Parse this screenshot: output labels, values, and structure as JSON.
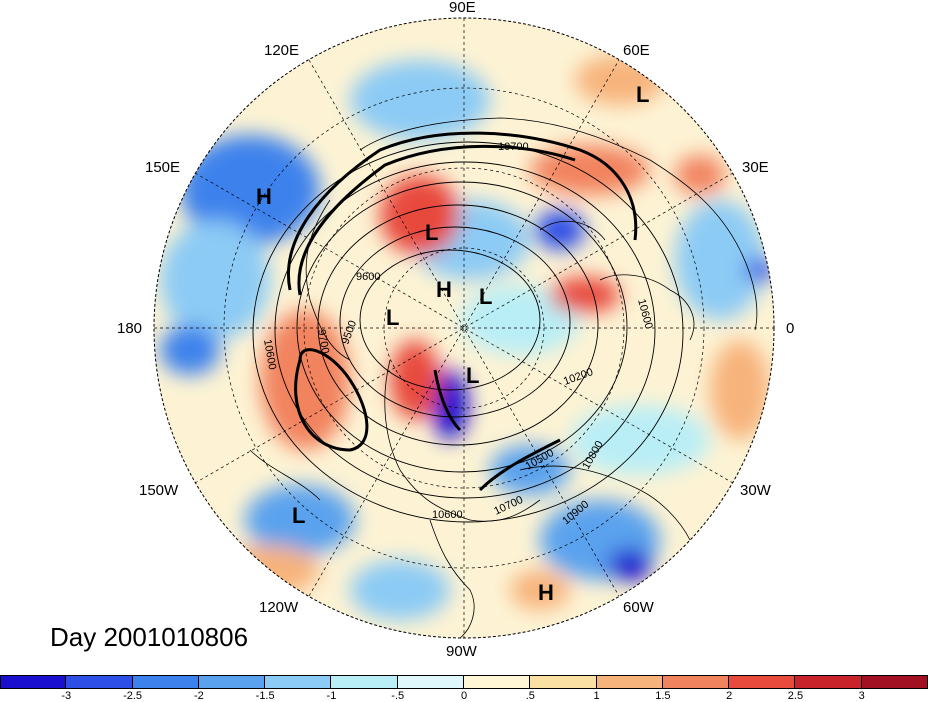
{
  "title": "Day 2001010806",
  "longitude_labels": [
    {
      "id": "90E",
      "text": "90E"
    },
    {
      "id": "60E",
      "text": "60E"
    },
    {
      "id": "120E",
      "text": "120E"
    },
    {
      "id": "150E",
      "text": "150E"
    },
    {
      "id": "30E",
      "text": "30E"
    },
    {
      "id": "180",
      "text": "180"
    },
    {
      "id": "0",
      "text": "0"
    },
    {
      "id": "150W",
      "text": "150W"
    },
    {
      "id": "30W",
      "text": "30W"
    },
    {
      "id": "120W",
      "text": "120W"
    },
    {
      "id": "60W",
      "text": "60W"
    },
    {
      "id": "90W",
      "text": "90W"
    }
  ],
  "pressure_marks": [
    "L",
    "H",
    "L",
    "H",
    "L",
    "L",
    "L",
    "L",
    "H"
  ],
  "contour_labels": [
    "10700",
    "9600",
    "9700",
    "9500",
    "10200",
    "10500",
    "10600",
    "10700",
    "10800",
    "10900",
    "10600",
    "10600"
  ],
  "colorbar": {
    "ticks": [
      "-3",
      "-2.5",
      "-2",
      "-1.5",
      "-1",
      "-.5",
      "0",
      ".5",
      "1",
      "1.5",
      "2",
      "2.5",
      "3"
    ],
    "colors": [
      "#1a0fcf",
      "#2e4fe6",
      "#3d82ec",
      "#5aa2ee",
      "#8ccbf5",
      "#b9eef6",
      "#dff6fa",
      "#fff6d6",
      "#fbe0a3",
      "#f7b37c",
      "#f2835f",
      "#e84a3c",
      "#c8222b",
      "#a11121"
    ]
  },
  "colors": {
    "ocean_neutral": "#fdf3d4",
    "coast": "#000000"
  }
}
